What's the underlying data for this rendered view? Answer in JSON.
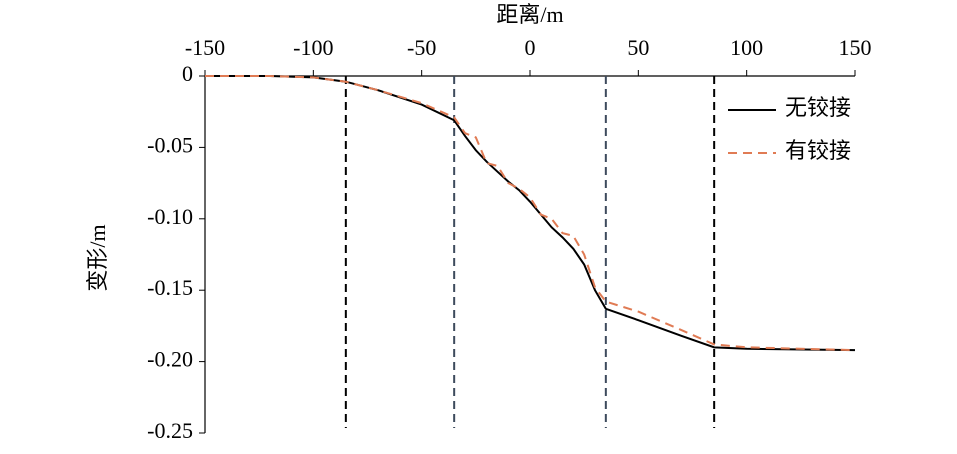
{
  "chart_data": {
    "type": "line",
    "x_label": "距离/m",
    "y_label": "变形/m",
    "x": [
      -150,
      -120,
      -100,
      -85,
      -70,
      -50,
      -35,
      -30,
      -25,
      -20,
      -15,
      -10,
      -5,
      0,
      5,
      10,
      15,
      20,
      25,
      30,
      35,
      50,
      70,
      85,
      100,
      150
    ],
    "series": [
      {
        "name": "无铰接",
        "color": "#000000",
        "dash": false,
        "values": [
          0,
          0,
          -0.001,
          -0.004,
          -0.01,
          -0.02,
          -0.031,
          -0.042,
          -0.052,
          -0.06,
          -0.067,
          -0.074,
          -0.08,
          -0.088,
          -0.097,
          -0.106,
          -0.113,
          -0.121,
          -0.132,
          -0.15,
          -0.163,
          -0.171,
          -0.182,
          -0.19,
          -0.191,
          -0.192
        ]
      },
      {
        "name": "有铰接",
        "color": "#e07b54",
        "dash": true,
        "values": [
          0,
          0,
          -0.001,
          -0.004,
          -0.01,
          -0.019,
          -0.029,
          -0.04,
          -0.043,
          -0.061,
          -0.063,
          -0.075,
          -0.079,
          -0.085,
          -0.097,
          -0.1,
          -0.11,
          -0.112,
          -0.125,
          -0.148,
          -0.158,
          -0.165,
          -0.178,
          -0.188,
          -0.19,
          -0.192
        ]
      }
    ],
    "xlim": [
      -150,
      150
    ],
    "xticks": [
      -150,
      -100,
      -50,
      0,
      50,
      100,
      150
    ],
    "ylim": [
      -0.25,
      0
    ],
    "yticks": [
      0,
      -0.05,
      {
        "value": -0.1,
        "label": "-0.10"
      },
      -0.15,
      {
        "value": -0.2,
        "label": "-0.20"
      },
      -0.25
    ],
    "vlines": [
      -85,
      -35,
      35,
      85
    ],
    "vline_colors": [
      "#000000",
      "#3d4a5c",
      "#3d4a5c",
      "#000000"
    ],
    "legend": "upper right",
    "grid": false
  }
}
